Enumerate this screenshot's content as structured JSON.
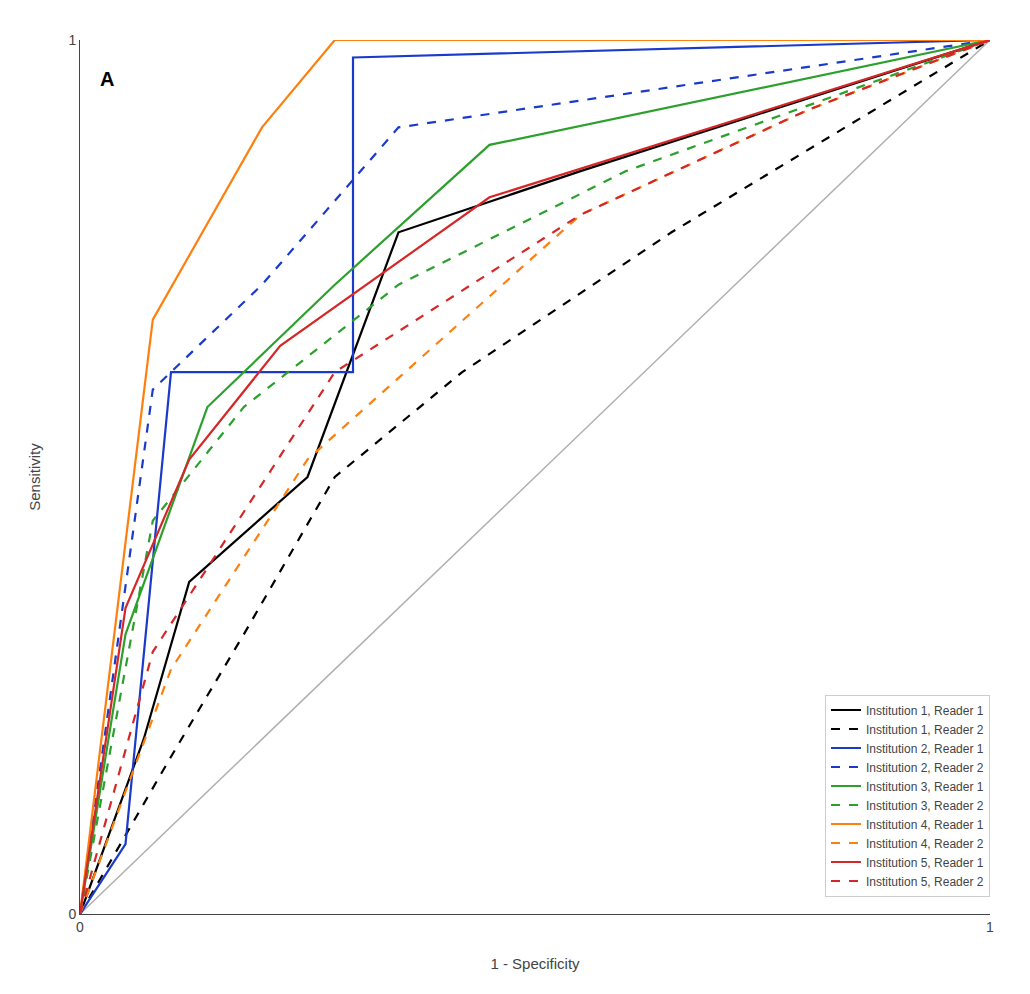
{
  "chart_data": {
    "type": "line",
    "title": "A",
    "x_label": "1 - Specificity",
    "y_label": "Sensitivity",
    "xlim": [
      0,
      1
    ],
    "ylim": [
      0,
      1
    ],
    "xticks": [
      0,
      1
    ],
    "yticks": [
      0,
      1
    ],
    "grid": false,
    "legend": "lower right",
    "series": [
      {
        "color": "#b0b0b0",
        "line_style": "solid",
        "x": [
          0,
          1
        ],
        "values": [
          0,
          1
        ]
      },
      {
        "name": "Institution 1, Reader 1",
        "color": "#000000",
        "line_style": "solid",
        "x": [
          0.0,
          0.07,
          0.12,
          0.25,
          0.35,
          0.55,
          1.0
        ],
        "values": [
          0.0,
          0.2,
          0.38,
          0.5,
          0.78,
          0.85,
          1.0
        ]
      },
      {
        "name": "Institution 1, Reader 2",
        "color": "#000000",
        "line_style": "dashed",
        "x": [
          0.0,
          0.1,
          0.18,
          0.28,
          0.42,
          0.65,
          1.0
        ],
        "values": [
          0.0,
          0.18,
          0.32,
          0.5,
          0.62,
          0.78,
          1.0
        ]
      },
      {
        "name": "Institution 2, Reader 1",
        "color": "#1a3acc",
        "line_style": "solid",
        "x": [
          0.0,
          0.05,
          0.1,
          0.3,
          0.3,
          1.0
        ],
        "values": [
          0.0,
          0.08,
          0.62,
          0.62,
          0.98,
          1.0
        ]
      },
      {
        "name": "Institution 2, Reader 2",
        "color": "#1a3acc",
        "line_style": "dashed",
        "x": [
          0.0,
          0.08,
          0.2,
          0.35,
          1.0
        ],
        "values": [
          0.0,
          0.6,
          0.72,
          0.9,
          1.0
        ]
      },
      {
        "name": "Institution 3, Reader 1",
        "color": "#2ca02c",
        "line_style": "solid",
        "x": [
          0.0,
          0.05,
          0.14,
          0.28,
          0.45,
          1.0
        ],
        "values": [
          0.0,
          0.32,
          0.58,
          0.72,
          0.88,
          1.0
        ]
      },
      {
        "name": "Institution 3, Reader 2",
        "color": "#2ca02c",
        "line_style": "dashed",
        "x": [
          0.0,
          0.08,
          0.18,
          0.35,
          0.6,
          1.0
        ],
        "values": [
          0.0,
          0.45,
          0.58,
          0.72,
          0.85,
          1.0
        ]
      },
      {
        "name": "Institution 4, Reader 1",
        "color": "#ff7f0e",
        "line_style": "solid",
        "x": [
          0.0,
          0.08,
          0.2,
          0.28,
          1.0
        ],
        "values": [
          0.0,
          0.68,
          0.9,
          1.0,
          1.0
        ]
      },
      {
        "name": "Institution 4, Reader 2",
        "color": "#ff7f0e",
        "line_style": "dashed",
        "x": [
          0.0,
          0.1,
          0.25,
          0.55,
          0.8,
          1.0
        ],
        "values": [
          0.0,
          0.28,
          0.52,
          0.8,
          0.92,
          1.0
        ]
      },
      {
        "name": "Institution 5, Reader 1",
        "color": "#d62728",
        "line_style": "solid",
        "x": [
          0.0,
          0.05,
          0.12,
          0.22,
          0.45,
          1.0
        ],
        "values": [
          0.0,
          0.35,
          0.52,
          0.65,
          0.82,
          1.0
        ]
      },
      {
        "name": "Institution 5, Reader 2",
        "color": "#d62728",
        "line_style": "dashed",
        "x": [
          0.0,
          0.08,
          0.28,
          0.55,
          0.8,
          1.0
        ],
        "values": [
          0.0,
          0.3,
          0.62,
          0.8,
          0.92,
          1.0
        ]
      }
    ]
  }
}
